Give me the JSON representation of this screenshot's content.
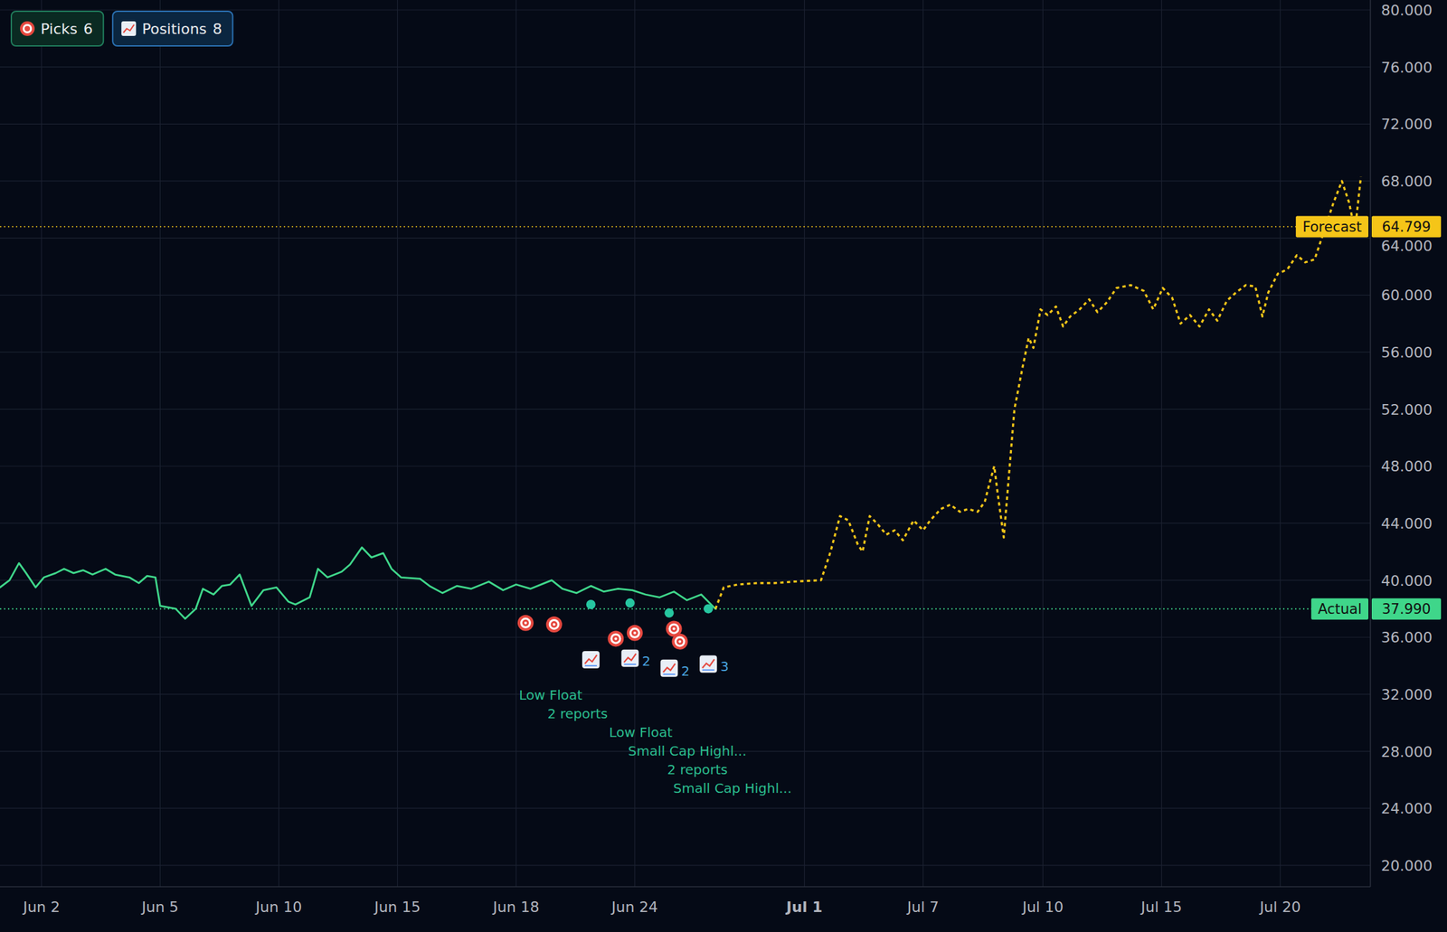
{
  "badges": [
    {
      "label": "Picks",
      "value": 6
    },
    {
      "label": "Positions",
      "value": 8
    }
  ],
  "chart_data": {
    "type": "line",
    "grid": true,
    "xlim": [
      -3.5,
      112
    ],
    "xticks": [
      {
        "value": 0,
        "label": "Jun 2"
      },
      {
        "value": 10,
        "label": "Jun 5"
      },
      {
        "value": 20,
        "label": "Jun 10"
      },
      {
        "value": 30,
        "label": "Jun 15"
      },
      {
        "value": 40,
        "label": "Jun 18"
      },
      {
        "value": 50,
        "label": "Jun 24"
      },
      {
        "value": 64.3,
        "label": "Jul 1"
      },
      {
        "value": 74.3,
        "label": "Jul 7"
      },
      {
        "value": 84.4,
        "label": "Jul 10"
      },
      {
        "value": 94.4,
        "label": "Jul 15"
      },
      {
        "value": 104.4,
        "label": "Jul 20"
      }
    ],
    "ylim": [
      18.5,
      80.7
    ],
    "yticks": [
      {
        "value": 20,
        "label": "20.000"
      },
      {
        "value": 24,
        "label": "24.000"
      },
      {
        "value": 28,
        "label": "28.000"
      },
      {
        "value": 32,
        "label": "32.000"
      },
      {
        "value": 36,
        "label": "36.000"
      },
      {
        "value": 40,
        "label": "40.000"
      },
      {
        "value": 44,
        "label": "44.000"
      },
      {
        "value": 48,
        "label": "48.000"
      },
      {
        "value": 52,
        "label": "52.000"
      },
      {
        "value": 56,
        "label": "56.000"
      },
      {
        "value": 60,
        "label": "60.000"
      },
      {
        "value": 64,
        "label": "64.000"
      },
      {
        "value": 68,
        "label": "68.000"
      },
      {
        "value": 72,
        "label": "72.000"
      },
      {
        "value": 76,
        "label": "76.000"
      },
      {
        "value": 80,
        "label": "80.000"
      }
    ],
    "series": [
      {
        "name": "Actual",
        "color": "#3fd68a",
        "line_style": "solid",
        "x": [
          -3.5,
          -2.7,
          -1.9,
          -1.3,
          -0.5,
          0.2,
          1.2,
          1.9,
          2.7,
          3.5,
          4.3,
          5.4,
          6.2,
          7.4,
          8.2,
          8.9,
          9.6,
          10.0,
          11.3,
          12.1,
          13.0,
          13.6,
          14.5,
          15.2,
          15.9,
          16.7,
          17.7,
          18.7,
          19.8,
          20.8,
          21.4,
          22.6,
          23.3,
          24.1,
          25.3,
          26.0,
          27.0,
          27.8,
          28.8,
          29.5,
          30.3,
          31.9,
          32.7,
          33.8,
          35.0,
          36.2,
          37.7,
          38.9,
          40.0,
          41.2,
          42.4,
          43.0,
          43.9,
          45.1,
          46.3,
          47.4,
          48.6,
          49.8,
          50.9,
          52.1,
          53.3,
          54.4,
          55.6,
          56.8
        ],
        "values": [
          39.5,
          40,
          41.2,
          40.5,
          39.5,
          40.2,
          40.5,
          40.8,
          40.5,
          40.7,
          40.4,
          40.8,
          40.4,
          40.2,
          39.8,
          40.3,
          40.2,
          38.2,
          38,
          37.3,
          38,
          39.4,
          39,
          39.6,
          39.7,
          40.4,
          38.2,
          39.3,
          39.5,
          38.5,
          38.3,
          38.8,
          40.8,
          40.2,
          40.6,
          41.1,
          42.3,
          41.6,
          41.9,
          40.8,
          40.2,
          40.1,
          39.6,
          39.1,
          39.6,
          39.4,
          39.9,
          39.3,
          39.7,
          39.4,
          39.8,
          40,
          39.4,
          39.1,
          39.6,
          39.2,
          39.4,
          39.3,
          39,
          38.8,
          39.2,
          38.6,
          39,
          37.99
        ]
      },
      {
        "name": "Forecast",
        "color": "#f5c518",
        "line_style": "dotted",
        "x": [
          56.8,
          57.5,
          58.7,
          60.3,
          61.8,
          63.4,
          65.7,
          66.5,
          67.3,
          68.0,
          68.8,
          69.2,
          69.8,
          70.4,
          71.2,
          71.9,
          72.6,
          73.5,
          74.3,
          74.9,
          75.8,
          76.6,
          77.4,
          78.1,
          78.9,
          79.5,
          79.9,
          80.3,
          80.6,
          81.1,
          81.6,
          82.0,
          82.7,
          83.2,
          83.6,
          84.2,
          84.8,
          85.5,
          86.1,
          86.7,
          87.5,
          88.3,
          89.0,
          89.8,
          90.6,
          91.8,
          92.9,
          93.7,
          94.5,
          95.3,
          96.0,
          96.8,
          97.6,
          98.4,
          99.1,
          99.9,
          100.7,
          101.5,
          102.3,
          102.9,
          103.4,
          104.2,
          105.0,
          105.8,
          106.5,
          107.3,
          108.1,
          108.9,
          109.6,
          110.2,
          110.7,
          111.2
        ],
        "values": [
          37.99,
          39.5,
          39.7,
          39.8,
          39.8,
          39.9,
          40,
          42,
          44.5,
          44.2,
          42.5,
          42,
          44.5,
          44,
          43.2,
          43.5,
          42.8,
          44.2,
          43.5,
          44.2,
          45,
          45.3,
          44.8,
          45,
          44.8,
          45.5,
          46.8,
          48,
          46,
          43,
          48,
          52,
          55,
          57,
          56.3,
          59,
          58.6,
          59.2,
          57.8,
          58.5,
          59,
          59.7,
          58.8,
          59.5,
          60.5,
          60.7,
          60.3,
          59,
          60.5,
          59.8,
          58,
          58.6,
          57.8,
          59,
          58.2,
          59.6,
          60.2,
          60.7,
          60.6,
          58.5,
          60.2,
          61.5,
          61.8,
          62.8,
          62.3,
          62.5,
          64.5,
          66.5,
          68,
          66.5,
          64.5,
          68.3
        ]
      }
    ],
    "reference_lines": [
      {
        "series": 1,
        "value": 64.799,
        "label": "64.799"
      },
      {
        "series": 0,
        "value": 37.99,
        "label": "37.990"
      }
    ],
    "picks": {
      "name": "Picks",
      "color": "#e5483f",
      "x": [
        40.8,
        43.2,
        48.4,
        50.0,
        53.3,
        53.8
      ],
      "values": [
        37.0,
        36.9,
        35.9,
        36.3,
        36.6,
        35.7
      ],
      "labels": [
        "Low Float",
        "2 reports",
        "Low Float",
        "Small Cap Highl...",
        "2 reports",
        "Small Cap Highl..."
      ]
    },
    "positions": {
      "name": "Positions",
      "color": "#26c6a0",
      "x": [
        46.3,
        49.6,
        52.9,
        56.2
      ],
      "values": [
        38.3,
        38.4,
        37.7,
        38.0
      ],
      "counts": [
        1,
        2,
        2,
        3
      ]
    }
  }
}
